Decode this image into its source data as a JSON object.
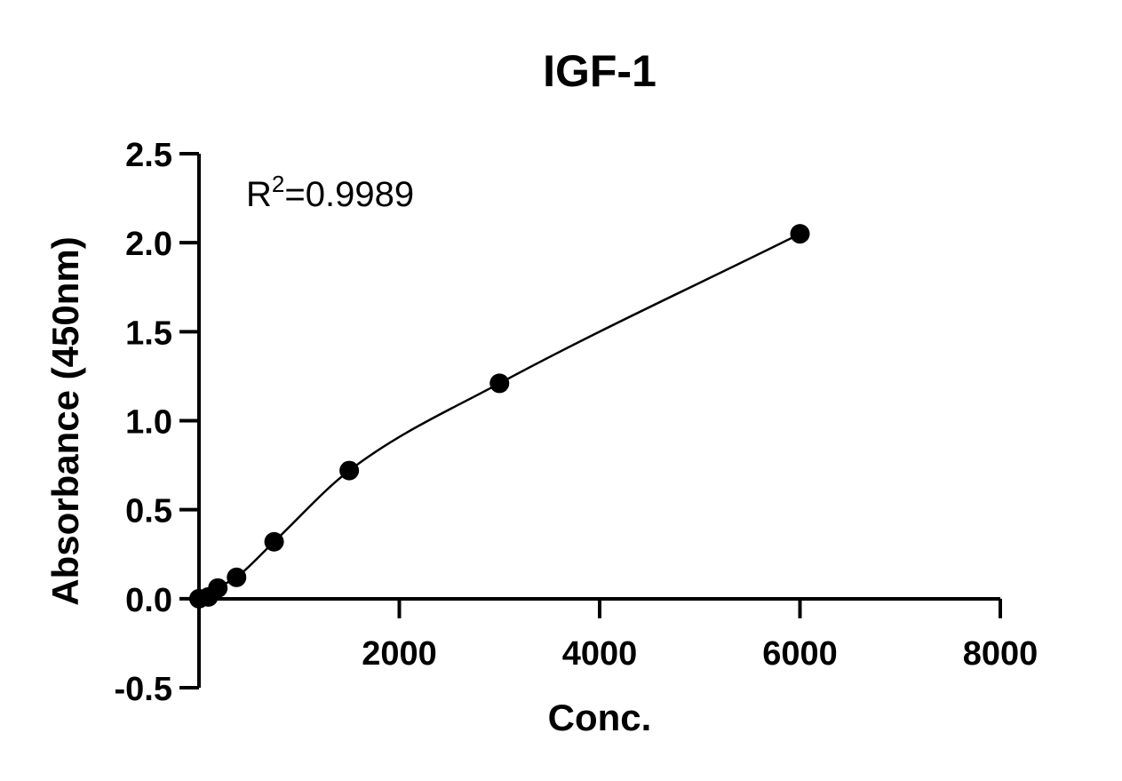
{
  "chart_data": {
    "type": "scatter",
    "title": "IGF-1",
    "xlabel": "Conc.",
    "ylabel": "Absorbance (450nm)",
    "xlim": [
      0,
      8000
    ],
    "ylim": [
      -0.5,
      2.5
    ],
    "x_ticks": [
      2000,
      4000,
      6000,
      8000
    ],
    "x_tick_labels": [
      "2000",
      "4000",
      "6000",
      "8000"
    ],
    "y_ticks": [
      -0.5,
      0.0,
      0.5,
      1.0,
      1.5,
      2.0,
      2.5
    ],
    "y_tick_labels": [
      "-0.5",
      "0.0",
      "0.5",
      "1.0",
      "1.5",
      "2.0",
      "2.5"
    ],
    "grid": false,
    "legend": "none",
    "annotation": {
      "base": "R",
      "superscript": "2",
      "value": "=0.9989"
    },
    "series": [
      {
        "x": [
          0,
          94,
          188,
          375,
          750,
          1500,
          3000,
          6000
        ],
        "y": [
          0.0,
          0.01,
          0.06,
          0.12,
          0.32,
          0.72,
          1.21,
          2.05
        ],
        "marker": "filled-circle",
        "color": "#000000",
        "fit_curve": true
      }
    ]
  }
}
